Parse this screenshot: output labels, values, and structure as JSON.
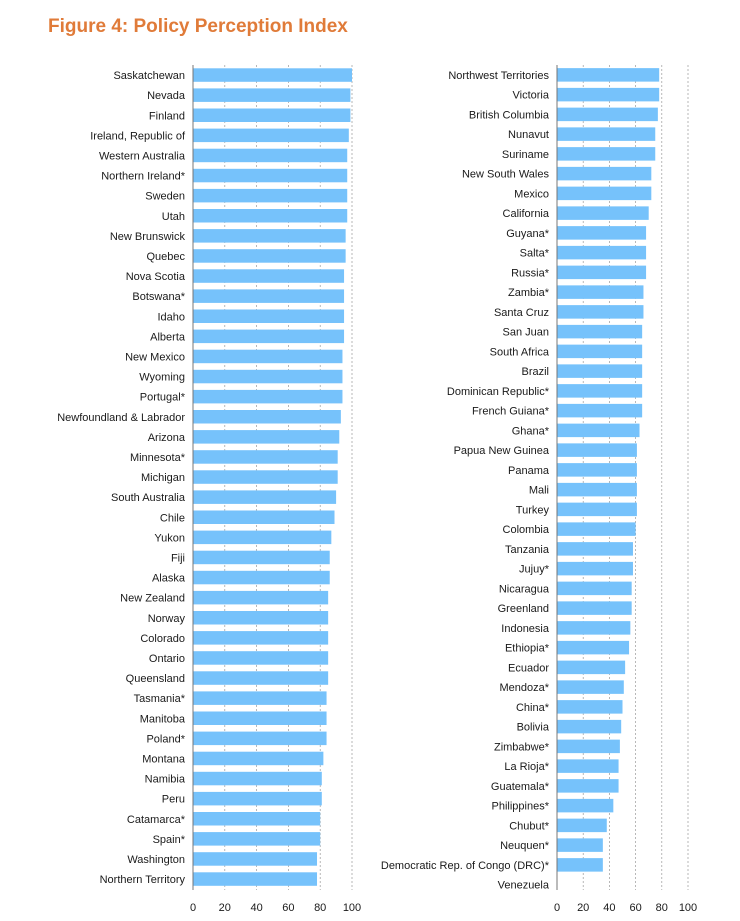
{
  "title": "Figure 4: Policy Perception Index",
  "colors": {
    "bar": "#76c2fb",
    "title": "#e07b39",
    "grid": "#999999"
  },
  "chart_data": [
    {
      "type": "bar",
      "orientation": "horizontal",
      "title": "",
      "xlabel": "",
      "ylabel": "",
      "xlim": [
        0,
        100
      ],
      "xticks": [
        0,
        20,
        40,
        60,
        80,
        100
      ],
      "grid": true,
      "categories": [
        "Saskatchewan",
        "Nevada",
        "Finland",
        "Ireland, Republic of",
        "Western Australia",
        "Northern Ireland*",
        "Sweden",
        "Utah",
        "New Brunswick",
        "Quebec",
        "Nova Scotia",
        "Botswana*",
        "Idaho",
        "Alberta",
        "New Mexico",
        "Wyoming",
        "Portugal*",
        "Newfoundland & Labrador",
        "Arizona",
        "Minnesota*",
        "Michigan",
        "South Australia",
        "Chile",
        "Yukon",
        "Fiji",
        "Alaska",
        "New Zealand",
        "Norway",
        "Colorado",
        "Ontario",
        "Queensland",
        "Tasmania*",
        "Manitoba",
        "Poland*",
        "Montana",
        "Namibia",
        "Peru",
        "Catamarca*",
        "Spain*",
        "Washington",
        "Northern Territory"
      ],
      "values": [
        100,
        99,
        99,
        98,
        97,
        97,
        97,
        97,
        96,
        96,
        95,
        95,
        95,
        95,
        94,
        94,
        94,
        93,
        92,
        91,
        91,
        90,
        89,
        87,
        86,
        86,
        85,
        85,
        85,
        85,
        85,
        84,
        84,
        84,
        82,
        81,
        81,
        80,
        80,
        78,
        78
      ]
    },
    {
      "type": "bar",
      "orientation": "horizontal",
      "title": "",
      "xlabel": "",
      "ylabel": "",
      "xlim": [
        0,
        100
      ],
      "xticks": [
        0,
        20,
        40,
        60,
        80,
        100
      ],
      "grid": true,
      "categories": [
        "Northwest Territories",
        "Victoria",
        "British Columbia",
        "Nunavut",
        "Suriname",
        "New South Wales",
        "Mexico",
        "California",
        "Guyana*",
        "Salta*",
        "Russia*",
        "Zambia*",
        "Santa Cruz",
        "San Juan",
        "South Africa",
        "Brazil",
        "Dominican Republic*",
        "French Guiana*",
        "Ghana*",
        "Papua New Guinea",
        "Panama",
        "Mali",
        "Turkey",
        "Colombia",
        "Tanzania",
        "Jujuy*",
        "Nicaragua",
        "Greenland",
        "Indonesia",
        "Ethiopia*",
        "Ecuador",
        "Mendoza*",
        "China*",
        "Bolivia",
        "Zimbabwe*",
        "La Rioja*",
        "Guatemala*",
        "Philippines*",
        "Chubut*",
        "Neuquen*",
        "Democratic Rep. of Congo (DRC)*",
        "Venezuela"
      ],
      "values": [
        78,
        78,
        77,
        75,
        75,
        72,
        72,
        70,
        68,
        68,
        68,
        66,
        66,
        65,
        65,
        65,
        65,
        65,
        63,
        61,
        61,
        61,
        61,
        60,
        58,
        58,
        57,
        57,
        56,
        55,
        52,
        51,
        50,
        49,
        48,
        47,
        47,
        43,
        38,
        35,
        35,
        0
      ]
    }
  ]
}
